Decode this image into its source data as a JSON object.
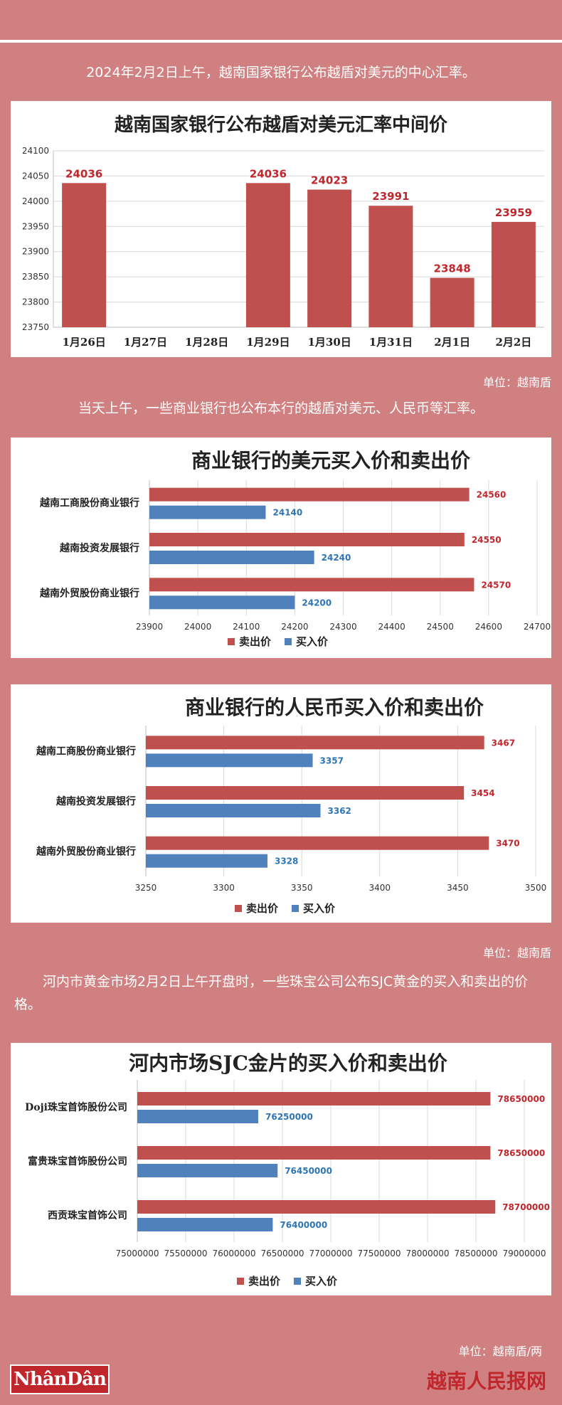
{
  "intro_text": "2024年2月2日上午，越南国家银行公布越盾对美元的中心汇率。",
  "unit_1": "单位：越南盾",
  "mid_text": "当天上午，一些商业银行也公布本行的越盾对美元、人民币等汇率。",
  "unit_2": "单位：越南盾",
  "gold_text": "河内市黄金市场2月2日上午开盘时，一些珠宝公司公布SJC黄金的买入和卖出的价格。",
  "unit_3": "单位：越南盾/两",
  "logo_left": "NhânDân",
  "logo_right": "越南人民报网",
  "colors": {
    "sell": "#c0504d",
    "buy": "#4f81bd",
    "background": "#d08080",
    "label_sell": "#c0272d",
    "label_buy": "#2e75b6"
  },
  "chart_data": [
    {
      "type": "bar",
      "title": "越南国家银行公布越盾对美元汇率中间价",
      "categories": [
        "1月26日",
        "1月27日",
        "1月28日",
        "1月29日",
        "1月30日",
        "1月31日",
        "2月1日",
        "2月2日"
      ],
      "values": [
        24036,
        null,
        null,
        24036,
        24023,
        23991,
        23848,
        23959
      ],
      "ylim": [
        23750,
        24100
      ],
      "yticks": [
        23750,
        23800,
        23850,
        23900,
        23950,
        24000,
        24050,
        24100
      ],
      "grid": true
    },
    {
      "type": "bar",
      "orientation": "horizontal",
      "title": "商业银行的美元买入价和卖出价",
      "categories": [
        "越南工商股份商业银行",
        "越南投资发展银行",
        "越南外贸股份商业银行"
      ],
      "series": [
        {
          "name": "卖出价",
          "values": [
            24560,
            24550,
            24570
          ]
        },
        {
          "name": "买入价",
          "values": [
            24140,
            24240,
            24200
          ]
        }
      ],
      "xlim": [
        23900,
        24700
      ],
      "xticks": [
        23900,
        24000,
        24100,
        24200,
        24300,
        24400,
        24500,
        24600,
        24700
      ],
      "legend": "bottom",
      "grid": true
    },
    {
      "type": "bar",
      "orientation": "horizontal",
      "title": "商业银行的人民币买入价和卖出价",
      "categories": [
        "越南工商股份商业银行",
        "越南投资发展银行",
        "越南外贸股份商业银行"
      ],
      "series": [
        {
          "name": "卖出价",
          "values": [
            3467,
            3454,
            3470
          ]
        },
        {
          "name": "买入价",
          "values": [
            3357,
            3362,
            3328
          ]
        }
      ],
      "xlim": [
        3250,
        3500
      ],
      "xticks": [
        3250,
        3300,
        3350,
        3400,
        3450,
        3500
      ],
      "legend": "bottom",
      "grid": true
    },
    {
      "type": "bar",
      "orientation": "horizontal",
      "title": "河内市场SJC金片的买入价和卖出价",
      "categories": [
        "Doji珠宝首饰股份公司",
        "富贵珠宝首饰股份公司",
        "西贡珠宝首饰公司"
      ],
      "series": [
        {
          "name": "卖出价",
          "values": [
            78650000,
            78650000,
            78700000
          ]
        },
        {
          "name": "买入价",
          "values": [
            76250000,
            76450000,
            76400000
          ]
        }
      ],
      "xlim": [
        75000000,
        79000000
      ],
      "xticks": [
        75000000,
        75500000,
        76000000,
        76500000,
        77000000,
        77500000,
        78000000,
        78500000,
        79000000
      ],
      "legend": "bottom",
      "grid": true
    }
  ]
}
